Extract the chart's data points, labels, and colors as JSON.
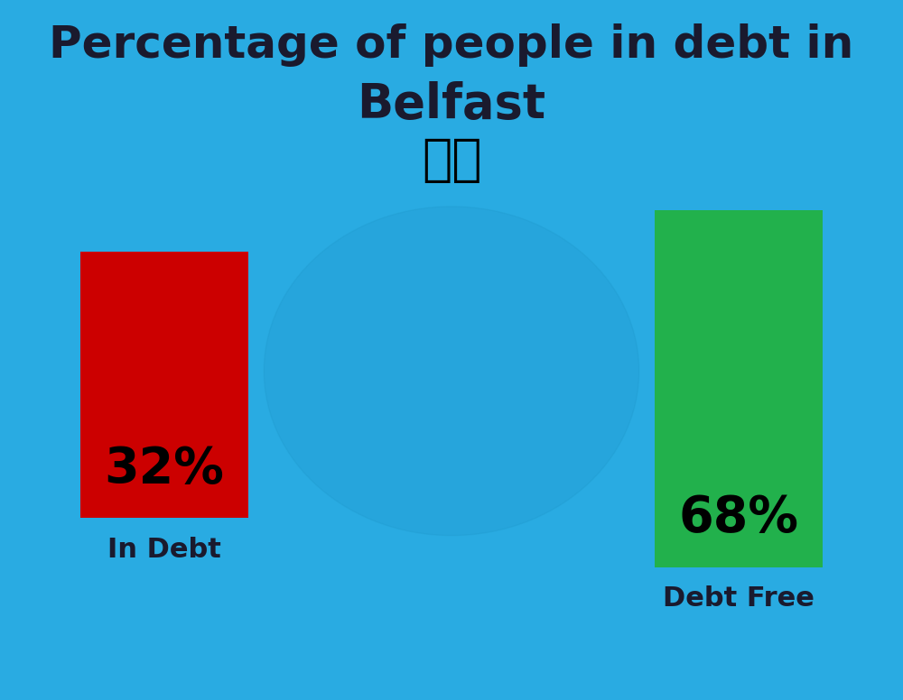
{
  "title_line1": "Percentage of people in debt in",
  "title_line2": "Belfast",
  "background_color": "#29ABE2",
  "bar1_value": 32,
  "bar1_label": "32%",
  "bar1_color": "#CC0000",
  "bar1_text_label": "In Debt",
  "bar2_value": 68,
  "bar2_label": "68%",
  "bar2_color": "#22B14C",
  "bar2_text_label": "Debt Free",
  "title_fontsize": 36,
  "subtitle_fontsize": 38,
  "bar_label_fontsize": 40,
  "axis_label_fontsize": 22,
  "text_color": "#1a1a2e"
}
